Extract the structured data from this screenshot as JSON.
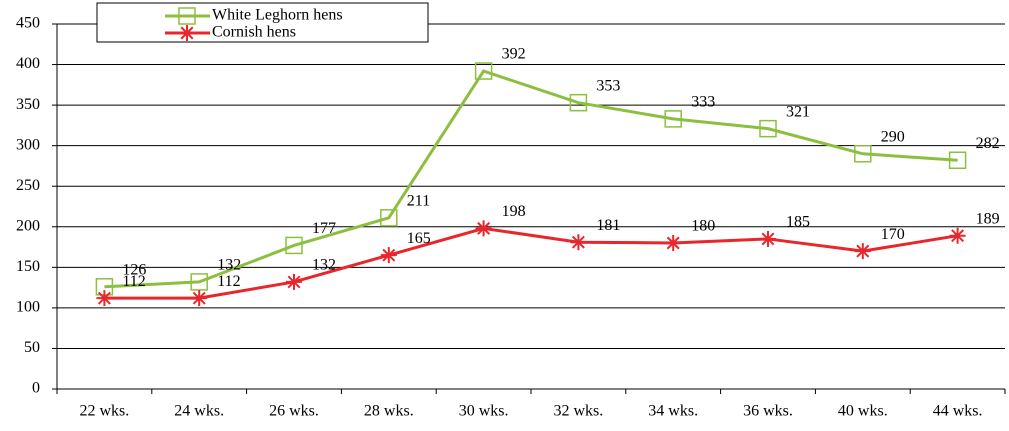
{
  "chart_data": {
    "type": "line",
    "categories": [
      "22 wks.",
      "24 wks.",
      "26 wks.",
      "28 wks.",
      "30 wks.",
      "32 wks.",
      "34 wks.",
      "36 wks.",
      "40 wks.",
      "44 wks."
    ],
    "series": [
      {
        "name": "White Leghorn hens",
        "color": "#8cbf3f",
        "marker": "square",
        "values": [
          126,
          132,
          177,
          211,
          392,
          353,
          333,
          321,
          290,
          282
        ]
      },
      {
        "name": "Cornish hens",
        "color": "#e8262b",
        "marker": "asterisk",
        "values": [
          112,
          112,
          132,
          165,
          198,
          181,
          180,
          185,
          170,
          189
        ]
      }
    ],
    "ylim": [
      0,
      450
    ],
    "yticks": [
      0,
      50,
      100,
      150,
      200,
      250,
      300,
      350,
      400,
      450
    ],
    "grid": true,
    "legend": "top-left"
  }
}
